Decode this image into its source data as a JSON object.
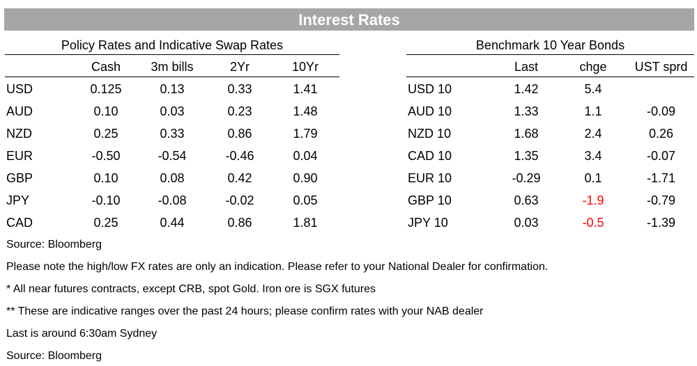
{
  "title": "Interest Rates",
  "policy": {
    "title": "Policy Rates and Indicative Swap Rates",
    "headers": [
      "Cash",
      "3m bills",
      "2Yr",
      "10Yr"
    ],
    "rows": [
      {
        "label": "USD",
        "values": [
          "0.125",
          "0.13",
          "0.33",
          "1.41"
        ]
      },
      {
        "label": "AUD",
        "values": [
          "0.10",
          "0.03",
          "0.23",
          "1.48"
        ]
      },
      {
        "label": "NZD",
        "values": [
          "0.25",
          "0.33",
          "0.86",
          "1.79"
        ]
      },
      {
        "label": "EUR",
        "values": [
          "-0.50",
          "-0.54",
          "-0.46",
          "0.04"
        ]
      },
      {
        "label": "GBP",
        "values": [
          "0.10",
          "0.08",
          "0.42",
          "0.90"
        ]
      },
      {
        "label": "JPY",
        "values": [
          "-0.10",
          "-0.08",
          "-0.02",
          "0.05"
        ]
      },
      {
        "label": "CAD",
        "values": [
          "0.25",
          "0.44",
          "0.86",
          "1.81"
        ]
      }
    ]
  },
  "bonds": {
    "title": "Benchmark 10 Year Bonds",
    "headers": [
      "Last",
      "chge",
      "UST sprd"
    ],
    "rows": [
      {
        "label": "USD 10",
        "last": "1.42",
        "chge": "5.4",
        "sprd": ""
      },
      {
        "label": "AUD 10",
        "last": "1.33",
        "chge": "1.1",
        "sprd": "-0.09"
      },
      {
        "label": "NZD 10",
        "last": "1.68",
        "chge": "2.4",
        "sprd": "0.26"
      },
      {
        "label": "CAD 10",
        "last": "1.35",
        "chge": "3.4",
        "sprd": "-0.07"
      },
      {
        "label": "EUR 10",
        "last": "-0.29",
        "chge": "0.1",
        "sprd": "-1.71"
      },
      {
        "label": "GBP 10",
        "last": "0.63",
        "chge": "-1.9",
        "sprd": "-0.79"
      },
      {
        "label": "JPY 10",
        "last": "0.03",
        "chge": "-0.5",
        "sprd": "-1.39"
      }
    ]
  },
  "negative_color": "#ff0000",
  "banner_color": "#a6a6a6",
  "notes": [
    "Source: Bloomberg",
    "Please note the high/low FX rates are only an indication. Please refer to your National Dealer for confirmation.",
    "* All near futures contracts, except CRB, spot Gold.  Iron ore is SGX futures",
    "** These are indicative ranges over the past 24 hours; please confirm rates with your NAB dealer",
    "Last is around 6:30am Sydney",
    "Source: Bloomberg"
  ]
}
